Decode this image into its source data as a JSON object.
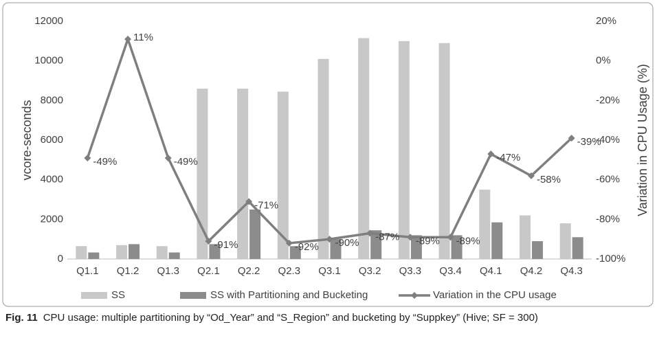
{
  "chart_data": {
    "type": "bar",
    "y_label": "vcore-seconds",
    "y2_label": "Variation in CPU Usage (%)",
    "categories": [
      "Q1.1",
      "Q1.2",
      "Q1.3",
      "Q2.1",
      "Q2.2",
      "Q2.3",
      "Q3.1",
      "Q3.2",
      "Q3.3",
      "Q3.4",
      "Q4.1",
      "Q4.2",
      "Q4.3"
    ],
    "series": [
      {
        "name": "SS",
        "type": "bar",
        "color": "#c8c8c8",
        "values": [
          650,
          700,
          650,
          8600,
          8600,
          8450,
          10100,
          11150,
          11000,
          10900,
          3500,
          2200,
          1800
        ]
      },
      {
        "name": "SS with Partitioning and Bucketing",
        "type": "bar",
        "color": "#8c8c8c",
        "values": [
          330,
          750,
          330,
          750,
          2500,
          650,
          1000,
          1450,
          1200,
          1200,
          1850,
          900,
          1100
        ]
      },
      {
        "name": "Variation in the CPU usage",
        "type": "line",
        "axis": "y2",
        "color": "#7f7f7f",
        "values": [
          -49,
          11,
          -49,
          -91,
          -71,
          -92,
          -90,
          -87,
          -89,
          -89,
          -47,
          -58,
          -39
        ],
        "value_labels": [
          "-49%",
          "11%",
          "-49%",
          "-91%",
          "-71%",
          "-92%",
          "-90%",
          "-87%",
          "-89%",
          "-89%",
          "-47%",
          "-58%",
          "-39%"
        ]
      }
    ],
    "ylim": [
      0,
      12000
    ],
    "yticks": [
      0,
      2000,
      4000,
      6000,
      8000,
      10000,
      12000
    ],
    "y2lim": [
      -100,
      20
    ],
    "y2ticks": [
      {
        "value": -100,
        "label": "-100%"
      },
      {
        "value": -80,
        "label": "-80%"
      },
      {
        "value": -60,
        "label": "-60%"
      },
      {
        "value": -40,
        "label": "-40%"
      },
      {
        "value": -20,
        "label": "-20%"
      },
      {
        "value": 0,
        "label": "0%"
      },
      {
        "value": 20,
        "label": "20%"
      }
    ],
    "grid": false,
    "legend": "bottom"
  },
  "caption": {
    "label": "Fig. 11",
    "text": "CPU usage: multiple partitioning by “Od_Year” and “S_Region” and bucketing by “Suppkey” (Hive; SF = 300)"
  }
}
